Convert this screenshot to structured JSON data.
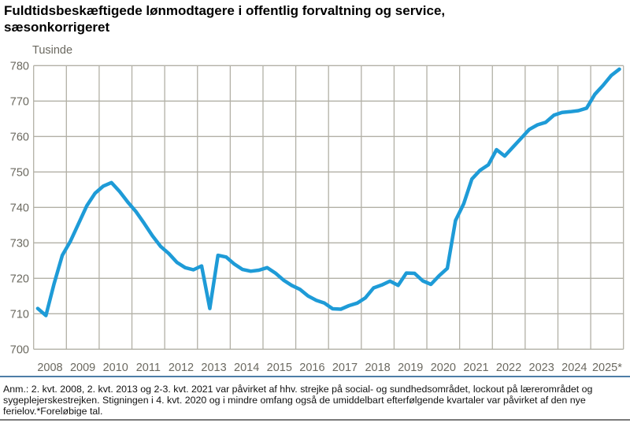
{
  "header": {
    "title": "Fuldtidsbeskæftigede lønmodtagere i offentlig forvaltning og service, sæsonkorrigeret"
  },
  "footnote": "Anm.: 2. kvt. 2008, 2. kvt. 2013 og 2-3. kvt. 2021 var påvirket af hhv. strejke på social- og sundhedsområdet, lockout på lærerområdet og sygeplejerskestrejken. Stigningen i 4. kvt. 2020 og i mindre omfang også de umiddelbart efterfølgende kvartaler var påvirket af den nye ferielov.*Foreløbige tal.",
  "chart_data": {
    "type": "line",
    "title": "Fuldtidsbeskæftigede lønmodtagere i offentlig forvaltning og service, sæsonkorrigeret",
    "y_axis_title": "Tusinde",
    "ylim": [
      700,
      780
    ],
    "y_ticks": [
      780,
      770,
      760,
      750,
      740,
      730,
      720,
      710,
      700
    ],
    "x_labels": [
      "2008",
      "2009",
      "2010",
      "2011",
      "2012",
      "2013",
      "2014",
      "2015",
      "2016",
      "2017",
      "2018",
      "2019",
      "2020",
      "2021",
      "2022",
      "2023",
      "2024",
      "2025*"
    ],
    "frequency": "quarterly",
    "x_start": "2008-Q1",
    "x_end": "2025-Q4",
    "grid": true,
    "legend": "none",
    "series": [
      {
        "name": "Fuldtidsbeskæftigede lønmodtagere, offentlig forvaltning og service, sæsonkorrigeret (tusinde)",
        "values": [
          711.5,
          709.5,
          718.5,
          726.5,
          730.5,
          735.5,
          740.5,
          744.0,
          746.0,
          747.0,
          744.5,
          741.5,
          738.8,
          735.5,
          732.0,
          729.0,
          727.0,
          724.5,
          723.0,
          722.4,
          723.5,
          711.5,
          726.5,
          726.0,
          724.0,
          722.5,
          722.0,
          722.3,
          723.0,
          721.5,
          719.5,
          718.0,
          716.9,
          715.0,
          713.8,
          713.0,
          711.4,
          711.3,
          712.3,
          713.0,
          714.5,
          717.3,
          718.1,
          719.2,
          718.0,
          721.5,
          721.4,
          719.3,
          718.3,
          720.7,
          722.8,
          736.3,
          741.0,
          748.0,
          750.5,
          752.0,
          756.3,
          754.5,
          757.0,
          759.5,
          762.0,
          763.3,
          764.0,
          766.0,
          766.8,
          767.0,
          767.3,
          768.0,
          771.9,
          774.4,
          777.2,
          779.0
        ]
      }
    ],
    "annotations": [
      "2008-Q2 dip: strejke på social- og sundhedsområdet",
      "2013-Q2 dip: lockout på lærerområdet",
      "2020-Q4 jump: den nye ferielov"
    ]
  },
  "colors": {
    "line": "#1e9bd7",
    "grid": "#b2b0a6",
    "tick_label": "#6b6960",
    "separator": "#4d7da6",
    "bottom_rule": "#7a7a7a"
  }
}
